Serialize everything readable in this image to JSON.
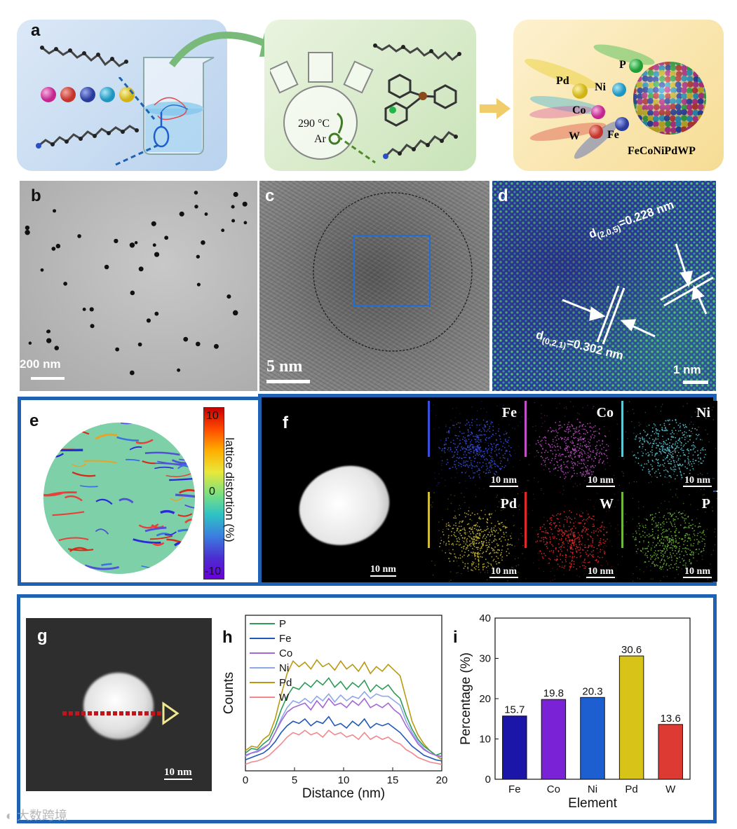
{
  "panels": {
    "a": {
      "label": "a",
      "condition_temp": "290 °C",
      "condition_gas": "Ar",
      "elements": [
        "Pd",
        "Ni",
        "Co",
        "W",
        "Fe",
        "P"
      ],
      "product": "FeCoNiPdWP",
      "colors": {
        "pink": "#d43f9f",
        "red": "#d8453d",
        "blue": "#3550b8",
        "cyan": "#32aed6",
        "yellow": "#e8cf2b",
        "green": "#3dbd4f"
      }
    },
    "b": {
      "label": "b",
      "scale": "200 nm"
    },
    "c": {
      "label": "c",
      "scale": "5 nm"
    },
    "d": {
      "label": "d",
      "scale": "1 nm",
      "d1_sub": "(2,0,5)",
      "d1_val": "=0.228 nm",
      "d2_sub": "(0,2,1)",
      "d2_val": "=0.302 nm",
      "d_prefix": "d"
    },
    "e": {
      "label": "e",
      "cbar_max": "10",
      "cbar_mid": "0",
      "cbar_min": "-10",
      "cbar_title": "lattice distortion (%)"
    },
    "f": {
      "label": "f",
      "haadf_scale": "10 nm",
      "maps": [
        {
          "el": "Fe",
          "scale": "10 nm",
          "color": "#3a4fd8"
        },
        {
          "el": "Co",
          "scale": "10 nm",
          "color": "#c04fc8"
        },
        {
          "el": "Ni",
          "scale": "10 nm",
          "color": "#5fc8d6"
        },
        {
          "el": "Pd",
          "scale": "10 nm",
          "color": "#cdbd3a"
        },
        {
          "el": "W",
          "scale": "10 nm",
          "color": "#e02a2a"
        },
        {
          "el": "P",
          "scale": "10 nm",
          "color": "#6fb83c"
        }
      ]
    },
    "g": {
      "label": "g",
      "scale": "10 nm"
    },
    "h": {
      "label": "h"
    },
    "i": {
      "label": "i"
    }
  },
  "chart_data": [
    {
      "type": "line",
      "panel": "h",
      "xlabel": "Distance (nm)",
      "ylabel": "Counts",
      "xlim": [
        0,
        20
      ],
      "xticks": [
        "0",
        "5",
        "10",
        "15",
        "20"
      ],
      "legend": [
        {
          "name": "P",
          "color": "#2e9b57"
        },
        {
          "name": "Fe",
          "color": "#1f58b8"
        },
        {
          "name": "Co",
          "color": "#a468d4"
        },
        {
          "name": "Ni",
          "color": "#8fa9e8"
        },
        {
          "name": "Pd",
          "color": "#b89a12"
        },
        {
          "name": "W",
          "color": "#f0888c"
        }
      ],
      "series": [
        {
          "name": "Pd",
          "values": [
            0.14,
            0.18,
            0.17,
            0.24,
            0.28,
            0.42,
            0.63,
            0.82,
            0.93,
            0.88,
            0.92,
            0.86,
            0.94,
            0.88,
            0.91,
            0.85,
            0.93,
            0.86,
            0.9,
            0.84,
            0.92,
            0.82,
            0.88,
            0.84,
            0.9,
            0.85,
            0.8,
            0.6,
            0.4,
            0.28,
            0.2,
            0.14,
            0.1,
            0.06
          ]
        },
        {
          "name": "P",
          "values": [
            0.12,
            0.16,
            0.15,
            0.2,
            0.24,
            0.35,
            0.5,
            0.62,
            0.7,
            0.68,
            0.74,
            0.7,
            0.76,
            0.72,
            0.78,
            0.7,
            0.75,
            0.68,
            0.74,
            0.7,
            0.76,
            0.66,
            0.72,
            0.68,
            0.72,
            0.65,
            0.6,
            0.45,
            0.33,
            0.24,
            0.18,
            0.14,
            0.1,
            0.12
          ]
        },
        {
          "name": "Ni",
          "values": [
            0.09,
            0.12,
            0.14,
            0.17,
            0.2,
            0.3,
            0.42,
            0.52,
            0.58,
            0.56,
            0.6,
            0.56,
            0.62,
            0.58,
            0.64,
            0.57,
            0.63,
            0.58,
            0.62,
            0.6,
            0.66,
            0.6,
            0.64,
            0.62,
            0.62,
            0.58,
            0.54,
            0.4,
            0.3,
            0.22,
            0.16,
            0.12,
            0.1,
            0.08
          ]
        },
        {
          "name": "Co",
          "values": [
            0.1,
            0.12,
            0.13,
            0.16,
            0.2,
            0.3,
            0.4,
            0.48,
            0.52,
            0.54,
            0.56,
            0.5,
            0.58,
            0.52,
            0.6,
            0.54,
            0.56,
            0.52,
            0.58,
            0.54,
            0.6,
            0.52,
            0.55,
            0.52,
            0.56,
            0.5,
            0.46,
            0.36,
            0.28,
            0.2,
            0.15,
            0.12,
            0.1,
            0.09
          ]
        },
        {
          "name": "Fe",
          "values": [
            0.06,
            0.08,
            0.1,
            0.12,
            0.16,
            0.22,
            0.3,
            0.36,
            0.4,
            0.38,
            0.42,
            0.36,
            0.4,
            0.38,
            0.44,
            0.36,
            0.38,
            0.34,
            0.4,
            0.36,
            0.42,
            0.34,
            0.38,
            0.36,
            0.38,
            0.34,
            0.3,
            0.24,
            0.18,
            0.14,
            0.1,
            0.08,
            0.06,
            0.05
          ]
        },
        {
          "name": "W",
          "values": [
            0.02,
            0.04,
            0.05,
            0.07,
            0.1,
            0.15,
            0.2,
            0.26,
            0.3,
            0.28,
            0.32,
            0.28,
            0.3,
            0.26,
            0.32,
            0.28,
            0.3,
            0.26,
            0.28,
            0.24,
            0.3,
            0.24,
            0.27,
            0.24,
            0.26,
            0.22,
            0.2,
            0.15,
            0.12,
            0.08,
            0.06,
            0.04,
            0.03,
            0.02
          ]
        }
      ]
    },
    {
      "type": "bar",
      "panel": "i",
      "categories": [
        "Fe",
        "Co",
        "Ni",
        "Pd",
        "W"
      ],
      "values": [
        15.7,
        19.8,
        20.3,
        30.6,
        13.6
      ],
      "value_labels": [
        "15.7",
        "19.8",
        "20.3",
        "30.6",
        "13.6"
      ],
      "colors": [
        "#1c16a8",
        "#7a22d6",
        "#1d5fd0",
        "#d8c418",
        "#dc3a32"
      ],
      "xlabel": "Element",
      "ylabel": "Percentage (%)",
      "ylim": [
        0,
        40
      ],
      "yticks": [
        "0",
        "10",
        "20",
        "30",
        "40"
      ]
    }
  ],
  "watermark": "大数跨境"
}
